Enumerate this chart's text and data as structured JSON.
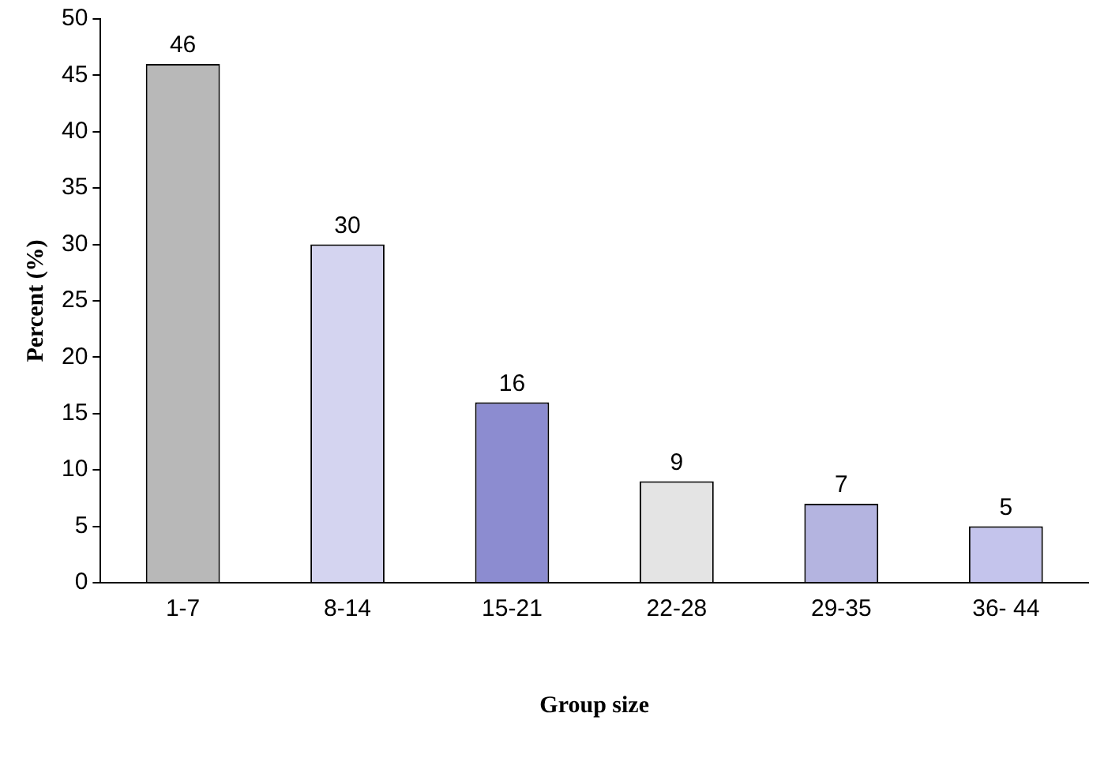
{
  "chart_data": {
    "type": "bar",
    "xlabel": "Group size",
    "ylabel": "Percent (%)",
    "categories": [
      "1-7",
      "8-14",
      "15-21",
      "22-28",
      "29-35",
      "36- 44"
    ],
    "values": [
      46,
      30,
      16,
      9,
      7,
      5
    ],
    "colors": [
      "#b8b8b8",
      "#d4d4f0",
      "#8c8cd0",
      "#e4e4e4",
      "#b4b4e0",
      "#c4c4ec"
    ],
    "ylim": [
      0,
      50
    ],
    "yticks": [
      0,
      5,
      10,
      15,
      20,
      25,
      30,
      35,
      40,
      45,
      50
    ],
    "grid": false,
    "legend": false,
    "data_labels": true
  }
}
